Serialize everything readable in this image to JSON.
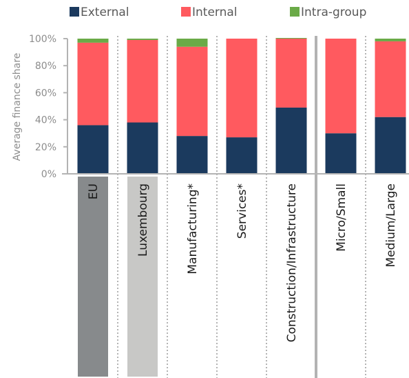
{
  "chart_data": {
    "type": "bar",
    "stacked": true,
    "percent": true,
    "ylabel": "Average finance  share",
    "ylim": [
      0,
      100
    ],
    "yticks": [
      "0%",
      "20%",
      "40%",
      "60%",
      "80%",
      "100%"
    ],
    "categories": [
      "EU",
      "Luxembourg",
      "Manufacturing*",
      "Services*",
      "Construction/Infrastructure",
      "Micro/Small",
      "Medium/Large"
    ],
    "series": [
      {
        "name": "External",
        "color": "#1b3a5e",
        "values": [
          36,
          38,
          28,
          27,
          49,
          30,
          42
        ]
      },
      {
        "name": "Internal",
        "color": "#ff5a5f",
        "values": [
          61,
          61,
          66,
          73,
          51,
          70,
          56
        ]
      },
      {
        "name": "Intra-group",
        "color": "#6aaa47",
        "values": [
          3,
          1,
          6,
          0,
          0.5,
          0,
          2
        ]
      }
    ],
    "legend": "top",
    "grid": false,
    "category_highlights": {
      "EU": "#878a8c",
      "Luxembourg": "#c8c8c6"
    }
  }
}
